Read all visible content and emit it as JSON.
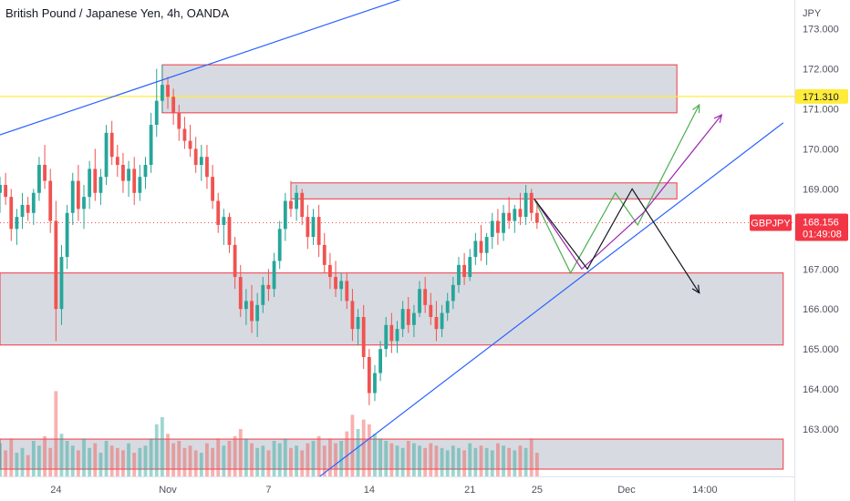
{
  "header": {
    "title": "British Pound / Japanese Yen, 4h, OANDA",
    "currency": "JPY"
  },
  "chart_data": {
    "type": "candlestick",
    "symbol": "GBPJPY",
    "current_price": "168.156",
    "countdown": "01:49:08",
    "marked_level": "171.310",
    "y_ticks": [
      "173.000",
      "172.000",
      "171.000",
      "170.000",
      "169.000",
      "167.000",
      "166.000",
      "165.000",
      "164.000",
      "163.000"
    ],
    "y_tick_values": [
      173,
      172,
      171,
      170,
      169,
      167,
      166,
      165,
      164,
      163
    ],
    "ylim": [
      162.0,
      173.4
    ],
    "x_ticks": [
      "24",
      "Nov",
      "7",
      "14",
      "21",
      "25",
      "Dec",
      "14:00"
    ],
    "x_tick_index": [
      10,
      30,
      48,
      66,
      84,
      96,
      112,
      126
    ],
    "xlim": [
      0,
      142
    ],
    "zones": [
      {
        "index_start": 29,
        "index_end": 121,
        "y_top": 172.1,
        "y_bottom": 170.9
      },
      {
        "index_start": 52,
        "index_end": 121,
        "y_top": 169.15,
        "y_bottom": 168.75
      },
      {
        "index_start": 0,
        "index_end": 140,
        "y_top": 166.9,
        "y_bottom": 165.1
      },
      {
        "index_start": 0,
        "index_end": 140,
        "y_top": 162.75,
        "y_bottom": 162.0
      }
    ],
    "trendlines": [
      {
        "color": "#2962ff",
        "points": [
          [
            0,
            170.35
          ],
          [
            90,
            174.6
          ]
        ]
      },
      {
        "color": "#2962ff",
        "points": [
          [
            57,
            161.8
          ],
          [
            140,
            170.65
          ]
        ]
      }
    ],
    "projections": [
      {
        "color": "#4caf50",
        "points": [
          [
            95.5,
            168.75
          ],
          [
            102,
            166.9
          ],
          [
            110,
            168.9
          ],
          [
            114,
            168.1
          ],
          [
            125,
            171.1
          ]
        ]
      },
      {
        "color": "#9c27b0",
        "points": [
          [
            95.5,
            168.75
          ],
          [
            104,
            167.0
          ],
          [
            115,
            168.4
          ],
          [
            129,
            170.85
          ]
        ]
      },
      {
        "color": "#131722",
        "points": [
          [
            95.5,
            168.75
          ],
          [
            105,
            167.0
          ],
          [
            113,
            169.0
          ],
          [
            125,
            166.4
          ]
        ]
      }
    ],
    "candles": [
      [
        0,
        168.9,
        169.3,
        168.4,
        169.1
      ],
      [
        1,
        169.1,
        169.4,
        168.6,
        168.8
      ],
      [
        2,
        168.8,
        169.0,
        167.7,
        168.0
      ],
      [
        3,
        168.0,
        168.5,
        167.6,
        168.3
      ],
      [
        4,
        168.3,
        168.9,
        168.0,
        168.6
      ],
      [
        5,
        168.6,
        168.8,
        168.2,
        168.4
      ],
      [
        6,
        168.4,
        169.0,
        168.1,
        168.9
      ],
      [
        7,
        168.9,
        169.8,
        168.7,
        169.6
      ],
      [
        8,
        169.6,
        170.1,
        169.0,
        169.2
      ],
      [
        9,
        169.2,
        169.5,
        167.9,
        168.2
      ],
      [
        10,
        168.2,
        168.7,
        165.2,
        166.0
      ],
      [
        11,
        166.0,
        167.6,
        165.6,
        167.3
      ],
      [
        12,
        167.3,
        168.6,
        167.0,
        168.4
      ],
      [
        13,
        168.4,
        169.4,
        168.1,
        169.2
      ],
      [
        14,
        169.2,
        169.6,
        168.2,
        168.5
      ],
      [
        15,
        168.5,
        169.1,
        168.0,
        168.8
      ],
      [
        16,
        168.8,
        169.7,
        168.5,
        169.5
      ],
      [
        17,
        169.5,
        170.0,
        168.7,
        168.9
      ],
      [
        18,
        168.9,
        169.5,
        168.6,
        169.3
      ],
      [
        19,
        169.3,
        170.6,
        169.1,
        170.4
      ],
      [
        20,
        170.4,
        170.7,
        169.6,
        169.8
      ],
      [
        21,
        169.8,
        170.1,
        169.3,
        169.6
      ],
      [
        22,
        169.6,
        169.9,
        168.9,
        169.2
      ],
      [
        23,
        169.2,
        169.7,
        168.8,
        169.5
      ],
      [
        24,
        169.5,
        169.8,
        168.6,
        168.9
      ],
      [
        25,
        168.9,
        169.6,
        168.7,
        169.3
      ],
      [
        26,
        169.3,
        169.8,
        169.0,
        169.6
      ],
      [
        27,
        169.6,
        170.9,
        169.4,
        170.6
      ],
      [
        28,
        170.6,
        172.0,
        170.3,
        171.2
      ],
      [
        29,
        171.2,
        172.1,
        170.9,
        171.6
      ],
      [
        30,
        171.6,
        171.8,
        171.0,
        171.3
      ],
      [
        31,
        171.3,
        171.5,
        170.6,
        170.9
      ],
      [
        32,
        170.9,
        171.1,
        170.2,
        170.5
      ],
      [
        33,
        170.5,
        170.8,
        170.0,
        170.2
      ],
      [
        34,
        170.2,
        170.6,
        169.8,
        170.0
      ],
      [
        35,
        170.0,
        170.3,
        169.4,
        169.6
      ],
      [
        36,
        169.6,
        170.1,
        169.2,
        169.8
      ],
      [
        37,
        169.8,
        170.1,
        169.0,
        169.3
      ],
      [
        38,
        169.3,
        169.6,
        168.5,
        168.7
      ],
      [
        39,
        168.7,
        168.9,
        167.9,
        168.1
      ],
      [
        40,
        168.1,
        168.5,
        167.6,
        168.3
      ],
      [
        41,
        168.3,
        168.4,
        167.4,
        167.6
      ],
      [
        42,
        167.6,
        167.8,
        166.5,
        166.8
      ],
      [
        43,
        166.8,
        167.1,
        165.8,
        166.0
      ],
      [
        44,
        166.0,
        166.5,
        165.6,
        166.2
      ],
      [
        45,
        166.2,
        166.6,
        165.4,
        165.7
      ],
      [
        46,
        165.7,
        166.4,
        165.3,
        166.1
      ],
      [
        47,
        166.1,
        166.8,
        165.9,
        166.6
      ],
      [
        48,
        166.6,
        167.0,
        166.2,
        166.5
      ],
      [
        49,
        166.5,
        167.4,
        166.3,
        167.2
      ],
      [
        50,
        167.2,
        168.2,
        167.0,
        168.0
      ],
      [
        51,
        168.0,
        168.9,
        167.7,
        168.7
      ],
      [
        52,
        168.7,
        169.2,
        168.3,
        168.5
      ],
      [
        53,
        168.5,
        169.1,
        168.2,
        168.9
      ],
      [
        54,
        168.9,
        169.0,
        168.1,
        168.3
      ],
      [
        55,
        168.3,
        168.6,
        167.5,
        167.8
      ],
      [
        56,
        167.8,
        168.5,
        167.6,
        168.3
      ],
      [
        57,
        168.3,
        168.6,
        167.3,
        167.6
      ],
      [
        58,
        167.6,
        167.9,
        166.9,
        167.1
      ],
      [
        59,
        167.1,
        167.4,
        166.5,
        166.8
      ],
      [
        60,
        166.8,
        167.2,
        166.3,
        166.5
      ],
      [
        61,
        166.5,
        166.9,
        166.2,
        166.7
      ],
      [
        62,
        166.7,
        166.9,
        166.0,
        166.2
      ],
      [
        63,
        166.2,
        166.5,
        165.2,
        165.5
      ],
      [
        64,
        165.5,
        166.0,
        165.1,
        165.8
      ],
      [
        65,
        165.8,
        166.1,
        164.5,
        164.8
      ],
      [
        66,
        164.8,
        165.0,
        163.6,
        163.9
      ],
      [
        67,
        163.9,
        164.6,
        163.7,
        164.4
      ],
      [
        68,
        164.4,
        165.2,
        164.2,
        165.0
      ],
      [
        69,
        165.0,
        165.8,
        164.8,
        165.6
      ],
      [
        70,
        165.6,
        165.9,
        164.9,
        165.2
      ],
      [
        71,
        165.2,
        165.7,
        164.9,
        165.5
      ],
      [
        72,
        165.5,
        166.2,
        165.3,
        166.0
      ],
      [
        73,
        166.0,
        166.3,
        165.4,
        165.6
      ],
      [
        74,
        165.6,
        166.1,
        165.3,
        165.9
      ],
      [
        75,
        165.9,
        166.7,
        165.8,
        166.5
      ],
      [
        76,
        166.5,
        166.8,
        165.9,
        166.1
      ],
      [
        77,
        166.1,
        166.4,
        165.6,
        165.8
      ],
      [
        78,
        165.8,
        166.2,
        165.2,
        165.5
      ],
      [
        79,
        165.5,
        166.1,
        165.3,
        165.9
      ],
      [
        80,
        165.9,
        166.4,
        165.7,
        166.2
      ],
      [
        81,
        166.2,
        166.8,
        166.0,
        166.6
      ],
      [
        82,
        166.6,
        167.3,
        166.4,
        167.1
      ],
      [
        83,
        167.1,
        167.4,
        166.6,
        166.8
      ],
      [
        84,
        166.8,
        167.5,
        166.7,
        167.3
      ],
      [
        85,
        167.3,
        167.9,
        167.1,
        167.7
      ],
      [
        86,
        167.7,
        168.1,
        167.2,
        167.4
      ],
      [
        87,
        167.4,
        167.9,
        167.1,
        167.8
      ],
      [
        88,
        167.8,
        168.4,
        167.5,
        168.2
      ],
      [
        89,
        168.2,
        168.5,
        167.6,
        167.9
      ],
      [
        90,
        167.9,
        168.6,
        167.7,
        168.4
      ],
      [
        91,
        168.4,
        168.8,
        168.0,
        168.2
      ],
      [
        92,
        168.2,
        168.6,
        167.9,
        168.5
      ],
      [
        93,
        168.5,
        168.9,
        168.1,
        168.3
      ],
      [
        94,
        168.3,
        169.1,
        168.1,
        168.9
      ],
      [
        95,
        168.9,
        169.0,
        168.2,
        168.4
      ],
      [
        96,
        168.4,
        168.7,
        168.0,
        168.156
      ]
    ],
    "volumes": [
      14,
      11,
      16,
      10,
      12,
      9,
      15,
      13,
      17,
      12,
      36,
      18,
      15,
      13,
      11,
      16,
      12,
      14,
      10,
      15,
      13,
      12,
      11,
      14,
      10,
      12,
      13,
      16,
      22,
      25,
      18,
      14,
      15,
      12,
      13,
      11,
      10,
      14,
      12,
      16,
      13,
      15,
      17,
      20,
      16,
      14,
      12,
      13,
      11,
      15,
      14,
      16,
      12,
      13,
      11,
      14,
      15,
      17,
      13,
      16,
      14,
      15,
      19,
      26,
      20,
      24,
      22,
      18,
      16,
      15,
      14,
      13,
      12,
      15,
      14,
      13,
      12,
      14,
      13,
      12,
      11,
      13,
      12,
      11,
      14,
      12,
      13,
      12,
      11,
      14,
      13,
      12,
      11,
      13,
      12,
      16,
      10
    ]
  }
}
